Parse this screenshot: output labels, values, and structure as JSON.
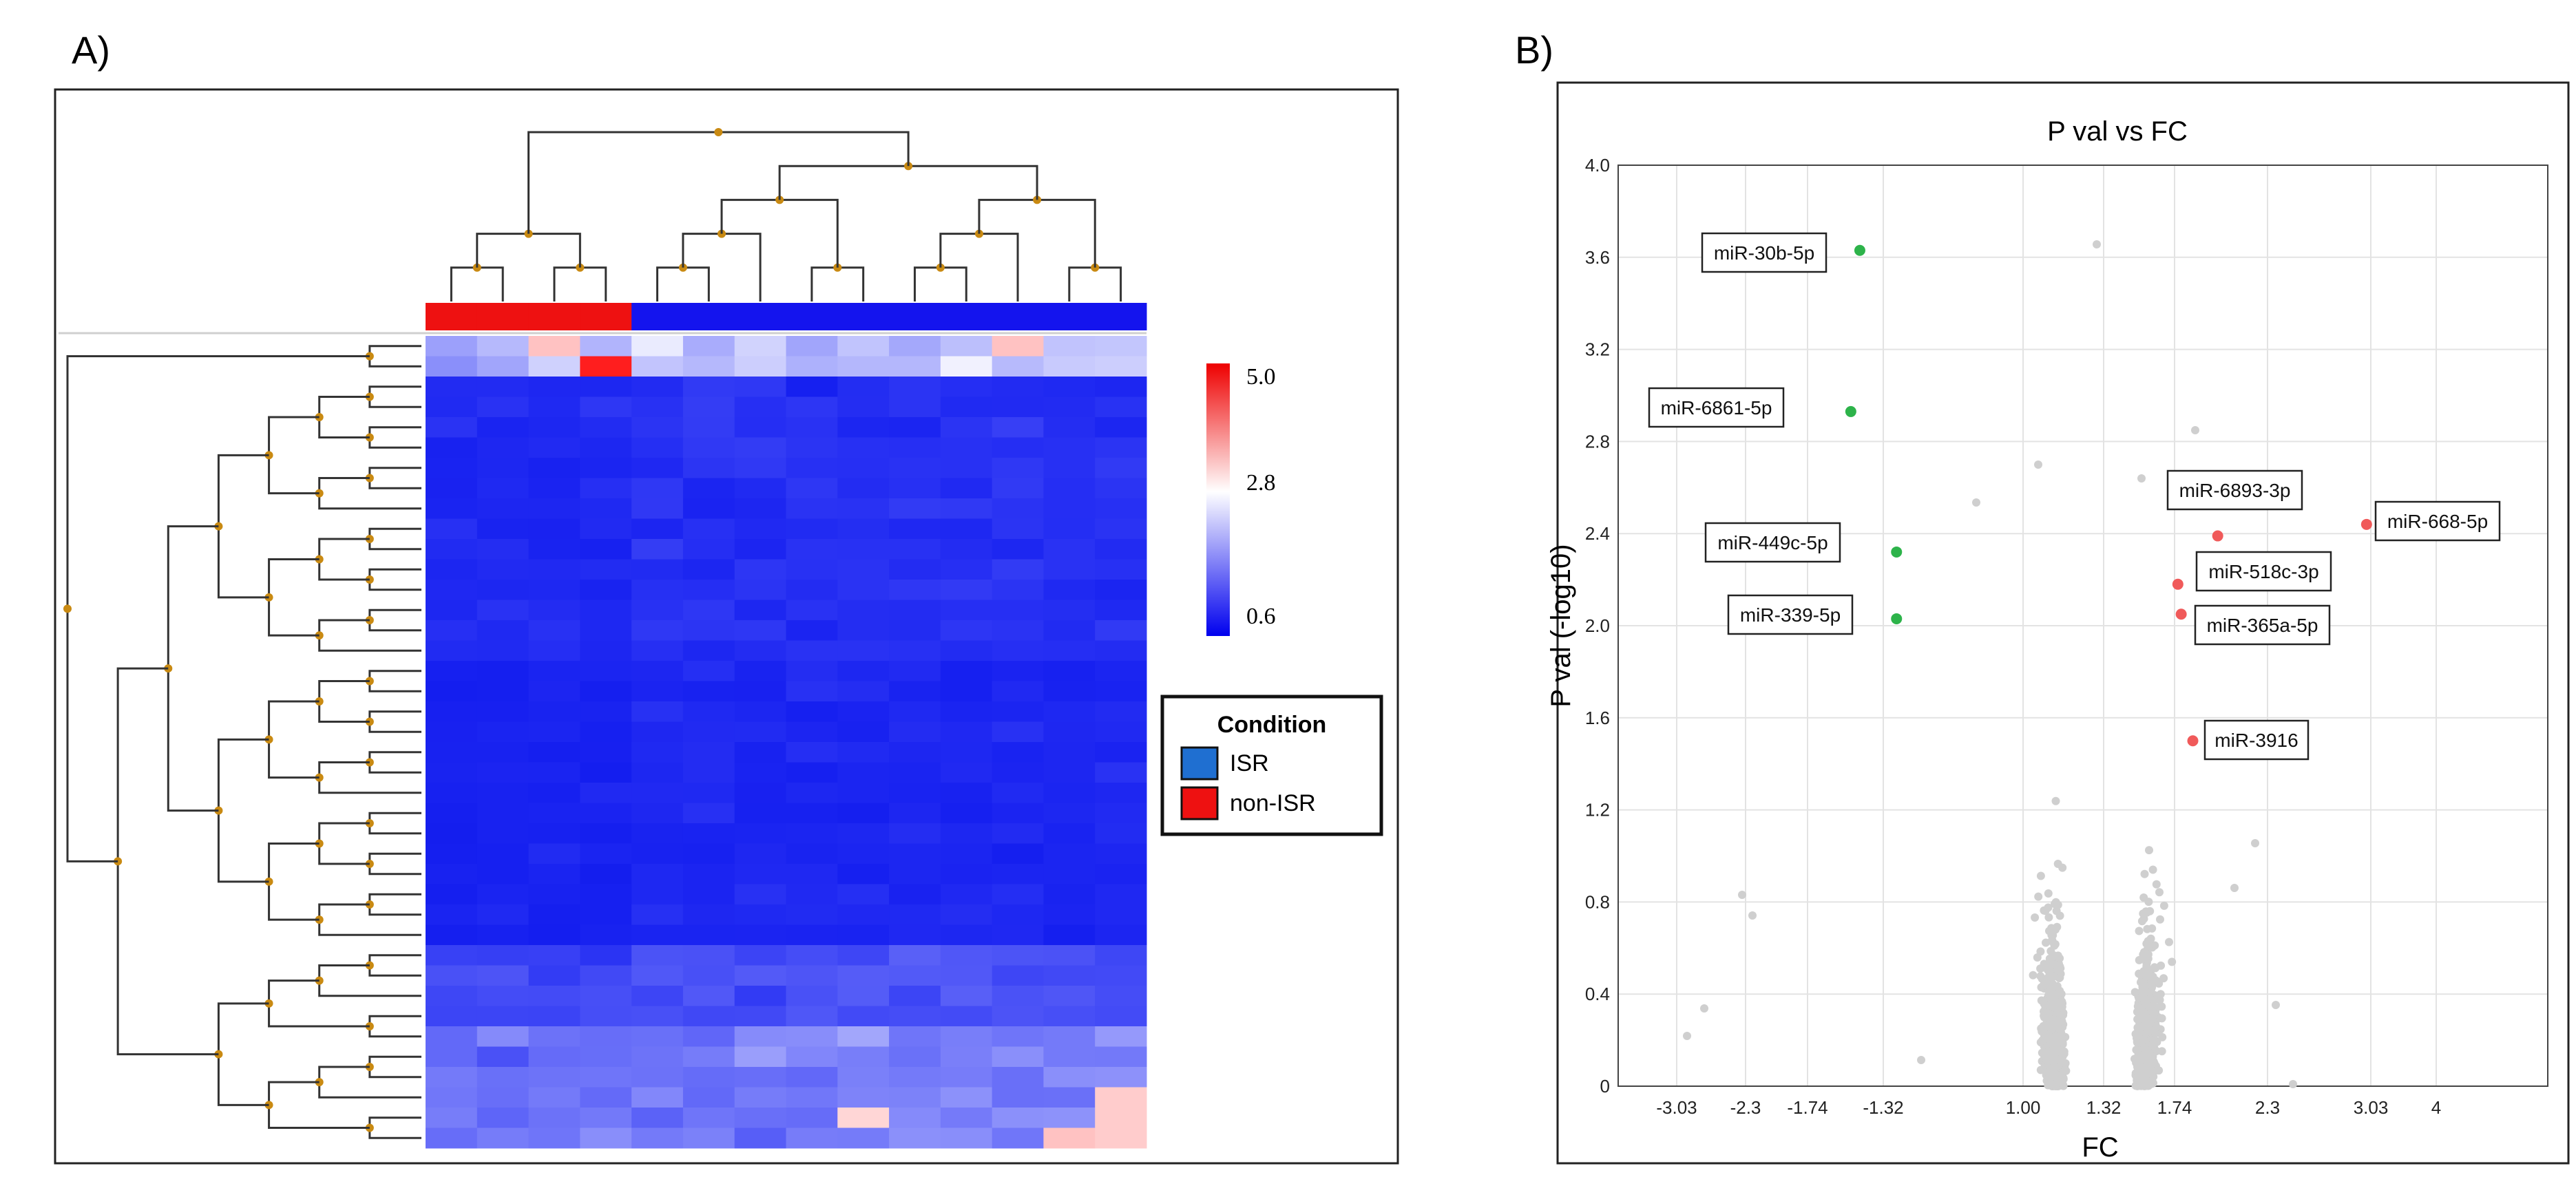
{
  "panel_a": {
    "label": "A)",
    "colorbar": {
      "ticks": [
        "5.0",
        "2.8",
        "0.6"
      ]
    },
    "legend": {
      "title": "Condition",
      "items": [
        {
          "label": "ISR",
          "color": "#1f6fd1"
        },
        {
          "label": "non-ISR",
          "color": "#ee1111"
        }
      ]
    },
    "chart_data": {
      "type": "heatmap",
      "columns": 14,
      "rows": 40,
      "column_groups": [
        "non-ISR",
        "non-ISR",
        "non-ISR",
        "non-ISR",
        "ISR",
        "ISR",
        "ISR",
        "ISR",
        "ISR",
        "ISR",
        "ISR",
        "ISR",
        "ISR",
        "ISR"
      ],
      "value_range": [
        0.6,
        5.0
      ]
    }
  },
  "panel_b": {
    "label": "B)",
    "chart_data": {
      "type": "scatter",
      "title": "P val vs FC",
      "xlabel": "FC",
      "ylabel": "P val (-log10)",
      "xticks": [
        "-3.03",
        "-2.3",
        "-1.74",
        "-1.32",
        "1.00",
        "1.32",
        "1.74",
        "2.3",
        "3.03",
        "4"
      ],
      "yticks": [
        "0",
        "0.4",
        "0.8",
        "1.2",
        "1.6",
        "2.0",
        "2.4",
        "2.8",
        "3.2",
        "3.6",
        "4.0"
      ],
      "ylim": [
        0,
        4.0
      ],
      "highlighted": [
        {
          "label": "miR-30b-5p",
          "x": -1.45,
          "y": 3.63,
          "color": "#2db34a"
        },
        {
          "label": "miR-6861-5p",
          "x": -1.5,
          "y": 2.93,
          "color": "#2db34a"
        },
        {
          "label": "miR-449c-5p",
          "x": -1.1,
          "y": 2.32,
          "color": "#2db34a"
        },
        {
          "label": "miR-339-5p",
          "x": -1.1,
          "y": 2.03,
          "color": "#2db34a"
        },
        {
          "label": "miR-6893-3p",
          "x": 2.0,
          "y": 2.39,
          "color": "#f05a5a"
        },
        {
          "label": "miR-668-5p",
          "x": 3.0,
          "y": 2.44,
          "color": "#f05a5a"
        },
        {
          "label": "miR-518c-3p",
          "x": 1.76,
          "y": 2.18,
          "color": "#f05a5a"
        },
        {
          "label": "miR-365a-5p",
          "x": 1.78,
          "y": 2.05,
          "color": "#f05a5a"
        },
        {
          "label": "miR-3916",
          "x": 1.85,
          "y": 1.5,
          "color": "#f05a5a"
        }
      ]
    }
  }
}
